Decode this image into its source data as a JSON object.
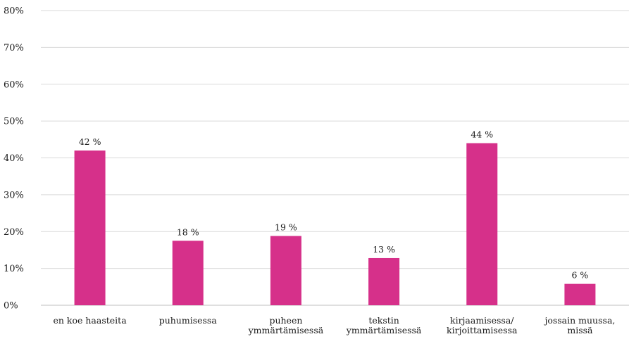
{
  "chart_data": {
    "type": "bar",
    "title": "",
    "xlabel": "",
    "ylabel": "",
    "ylim": [
      0,
      80
    ],
    "yticks": [
      {
        "value": 0,
        "label": "0%"
      },
      {
        "value": 10,
        "label": "10%"
      },
      {
        "value": 20,
        "label": "20%"
      },
      {
        "value": 30,
        "label": "30%"
      },
      {
        "value": 40,
        "label": "40%"
      },
      {
        "value": 50,
        "label": "50%"
      },
      {
        "value": 60,
        "label": "60%"
      },
      {
        "value": 70,
        "label": "70%"
      },
      {
        "value": 80,
        "label": "80%"
      }
    ],
    "grid": true,
    "legend": "none",
    "categories": [
      [
        "en koe haasteita"
      ],
      [
        "puhumisessa"
      ],
      [
        "puheen",
        "ymmärtämisessä"
      ],
      [
        "tekstin",
        "ymmärtämisessä"
      ],
      [
        "kirjaamisessa/",
        "kirjoittamisessa"
      ],
      [
        "jossain muussa,",
        "missä"
      ]
    ],
    "series": [
      {
        "values": [
          42,
          17.5,
          18.8,
          12.8,
          44,
          5.8
        ],
        "data_labels": [
          "42 %",
          "18 %",
          "19 %",
          "13 %",
          "44 %",
          "6 %"
        ],
        "color": "#d6308a"
      }
    ]
  }
}
